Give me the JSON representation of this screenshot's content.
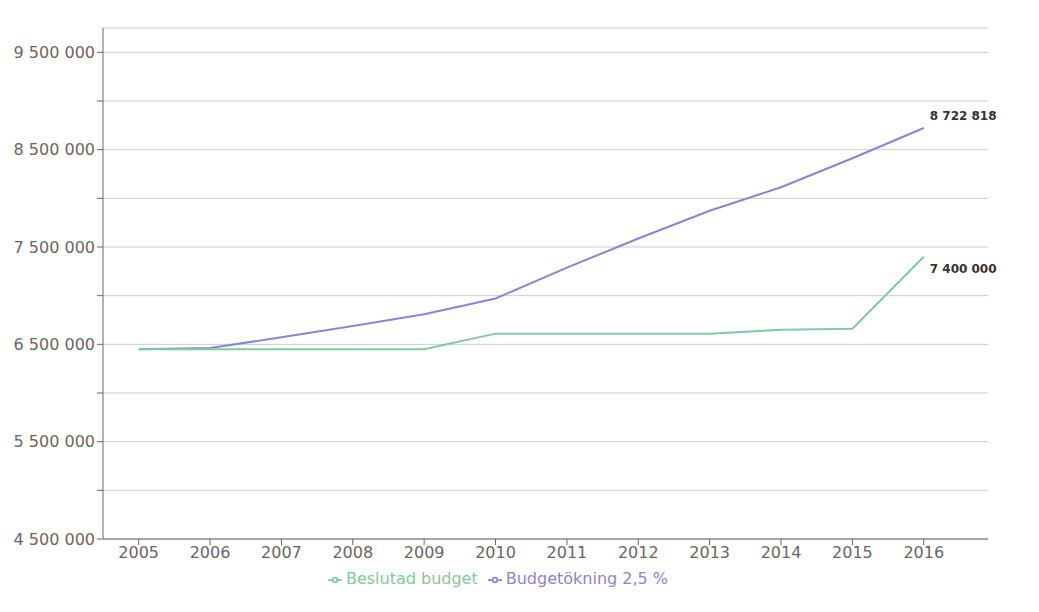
{
  "chart_data": {
    "type": "line",
    "x": [
      2005,
      2006,
      2007,
      2008,
      2009,
      2010,
      2011,
      2012,
      2013,
      2014,
      2015,
      2016
    ],
    "series": [
      {
        "name": "Budgetökning 2,5 %",
        "color": "#8884d8",
        "values": [
          6450000,
          6461250,
          6572781,
          6688351,
          6808060,
          6970761,
          7287673,
          7587382,
          7872064,
          8113826,
          8411497,
          8722818
        ]
      },
      {
        "name": "Beslutad budget",
        "color": "#82ca9d",
        "values": [
          6450000,
          6450000,
          6450000,
          6450000,
          6450000,
          6610000,
          6610000,
          6610000,
          6610000,
          6650000,
          6660000,
          7400000
        ]
      }
    ],
    "xlim": [
      2004.5,
      2016.9
    ],
    "xticks": [
      2005,
      2006,
      2007,
      2008,
      2009,
      2010,
      2011,
      2012,
      2013,
      2014,
      2015,
      2016
    ],
    "ylim": [
      4500000,
      9750000
    ],
    "yticks": [
      {
        "value": 4500000,
        "label": "4 500 000"
      },
      {
        "value": 5000000,
        "label": null
      },
      {
        "value": 5500000,
        "label": "5 500 000"
      },
      {
        "value": 6000000,
        "label": null
      },
      {
        "value": 6500000,
        "label": "6 500 000"
      },
      {
        "value": 7000000,
        "label": null
      },
      {
        "value": 7500000,
        "label": "7 500 000"
      },
      {
        "value": 8000000,
        "label": null
      },
      {
        "value": 8500000,
        "label": "8 500 000"
      },
      {
        "value": 9000000,
        "label": null
      },
      {
        "value": 9500000,
        "label": "9 500 000"
      }
    ],
    "grid": true,
    "legend": "bottom",
    "annotations": [
      {
        "text": "8 722 818",
        "x": 2016,
        "y": 8722818
      },
      {
        "text": "7 400 000",
        "x": 2016,
        "y": 7400000
      }
    ]
  }
}
